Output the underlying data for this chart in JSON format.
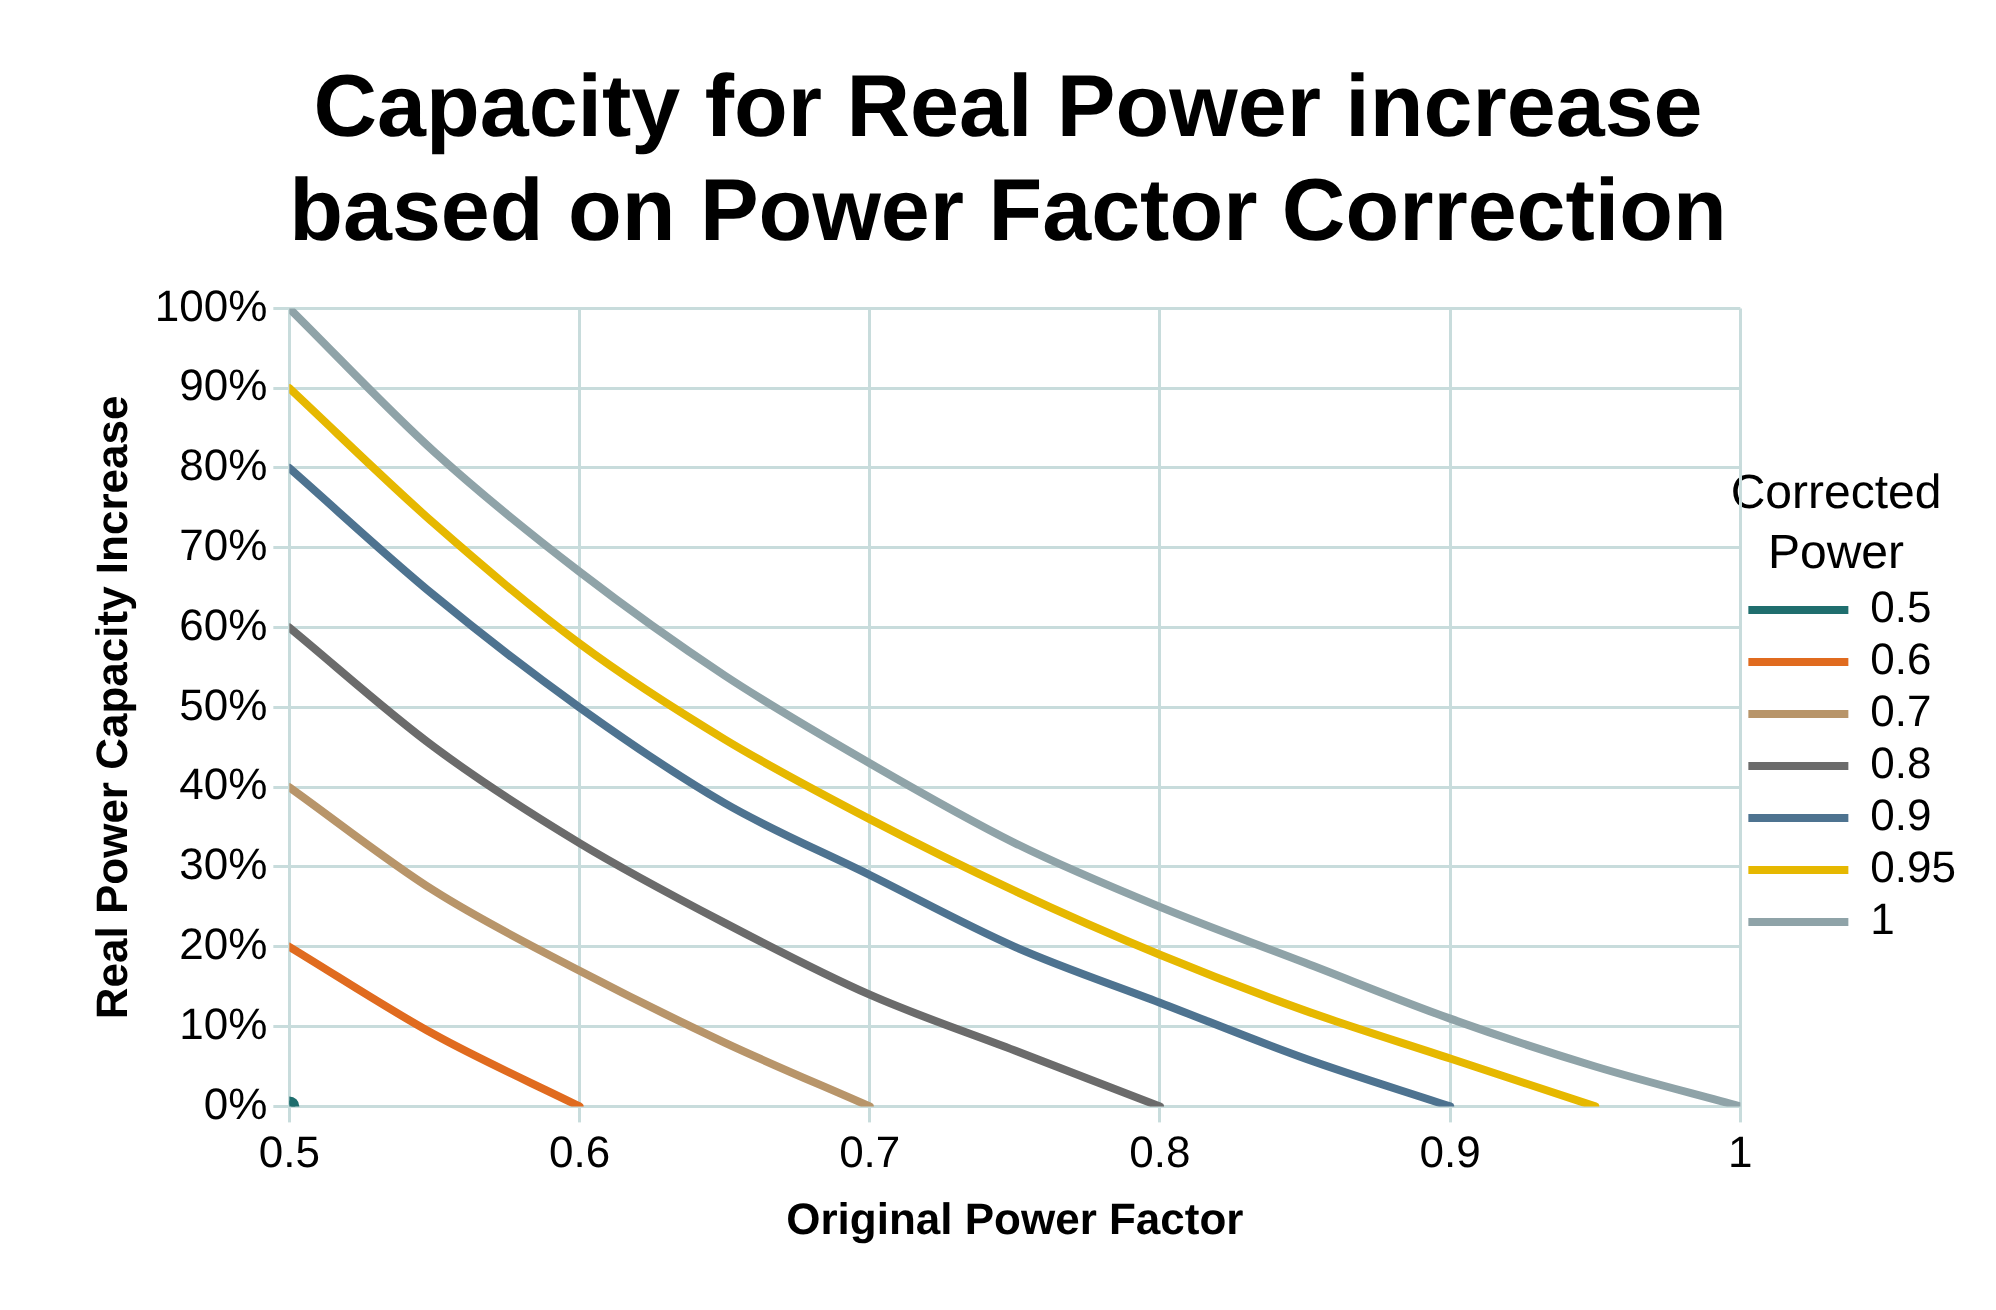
{
  "chart_data": {
    "type": "line",
    "title": "Capacity for Real Power increase based on Power Factor Correction",
    "xlabel": "Original Power Factor",
    "ylabel": "Real Power Capacity Increase",
    "legend_title": "Corrected Power",
    "legend": "right",
    "grid": true,
    "marker": "none",
    "line_style": "solid",
    "xlim": [
      0.5,
      1
    ],
    "xticks": [
      0.5,
      0.6,
      0.7,
      0.8,
      0.9,
      1
    ],
    "ylim": [
      0,
      100
    ],
    "yticks": [
      {
        "value": 0,
        "label": "0%"
      },
      {
        "value": 10,
        "label": "10%"
      },
      {
        "value": 20,
        "label": "20%"
      },
      {
        "value": 30,
        "label": "30%"
      },
      {
        "value": 40,
        "label": "40%"
      },
      {
        "value": 50,
        "label": "50%"
      },
      {
        "value": 60,
        "label": "60%"
      },
      {
        "value": 70,
        "label": "70%"
      },
      {
        "value": 80,
        "label": "80%"
      },
      {
        "value": 90,
        "label": "90%"
      },
      {
        "value": 100,
        "label": "100%"
      }
    ],
    "series": [
      {
        "name": "0.5",
        "color": "#1f6e6e",
        "marker": "circle",
        "x": [
          0.5
        ],
        "values": [
          0
        ]
      },
      {
        "name": "0.6",
        "color": "#e06b1f",
        "x": [
          0.5,
          0.55,
          0.6
        ],
        "values": [
          20,
          9,
          0
        ]
      },
      {
        "name": "0.7",
        "color": "#b8956a",
        "x": [
          0.5,
          0.55,
          0.6,
          0.65,
          0.7
        ],
        "values": [
          40,
          27,
          17,
          8,
          0
        ]
      },
      {
        "name": "0.8",
        "color": "#6b6b6b",
        "x": [
          0.5,
          0.55,
          0.6,
          0.65,
          0.7,
          0.75,
          0.8
        ],
        "values": [
          60,
          45,
          33,
          23,
          14,
          7,
          0
        ]
      },
      {
        "name": "0.9",
        "color": "#4e7390",
        "x": [
          0.5,
          0.55,
          0.6,
          0.65,
          0.7,
          0.75,
          0.8,
          0.85,
          0.9
        ],
        "values": [
          80,
          64,
          50,
          38,
          29,
          20,
          13,
          6,
          0
        ]
      },
      {
        "name": "0.95",
        "color": "#e6b800",
        "x": [
          0.5,
          0.55,
          0.6,
          0.65,
          0.7,
          0.75,
          0.8,
          0.85,
          0.9,
          0.95
        ],
        "values": [
          90,
          73,
          58,
          46,
          36,
          27,
          19,
          12,
          6,
          0
        ]
      },
      {
        "name": "1",
        "color": "#8fa3a8",
        "x": [
          0.5,
          0.55,
          0.6,
          0.65,
          0.7,
          0.75,
          0.8,
          0.85,
          0.9,
          0.95,
          1
        ],
        "values": [
          100,
          82,
          67,
          54,
          43,
          33,
          25,
          18,
          11,
          5,
          0
        ]
      }
    ]
  }
}
